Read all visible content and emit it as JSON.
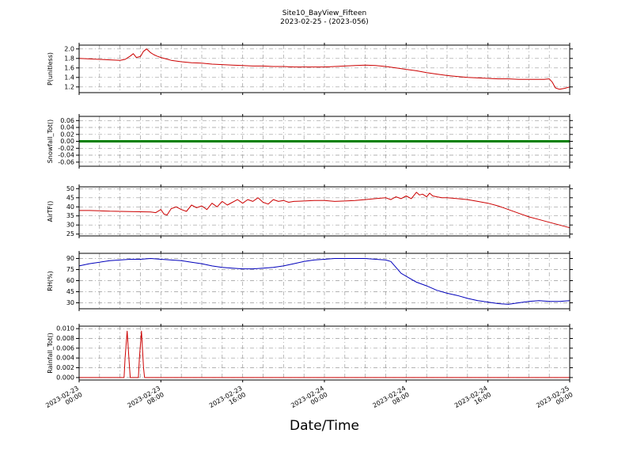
{
  "title": {
    "line1": "Site10_BayView_Fifteen",
    "line2": "2023-02-25 - (2023-056)"
  },
  "xlabel": "Date/Time",
  "x_axis": {
    "xlim": [
      0,
      48
    ],
    "xticks": [
      0,
      8,
      16,
      24,
      32,
      40,
      48
    ],
    "xtick_labels": [
      [
        "2023-02-23",
        "00:00"
      ],
      [
        "2023-02-23",
        "08:00"
      ],
      [
        "2023-02-23",
        "16:00"
      ],
      [
        "2023-02-24",
        "00:00"
      ],
      [
        "2023-02-24",
        "08:00"
      ],
      [
        "2023-02-24",
        "16:00"
      ],
      [
        "2023-02-25",
        "00:00"
      ]
    ],
    "minor_step": 2
  },
  "chart_data": [
    {
      "type": "line",
      "ylabel": "P(unitless)",
      "color": "#cc0000",
      "linewidth": 1,
      "ylim": [
        1.08,
        2.08
      ],
      "yticks": [
        1.2,
        1.4,
        1.6,
        1.8,
        2.0
      ],
      "ytick_labels": [
        "1.2",
        "1.4",
        "1.6",
        "1.8",
        "2.0"
      ],
      "x": [
        0,
        1,
        2,
        3,
        4,
        4.5,
        5,
        5.3,
        5.6,
        6,
        6.3,
        6.6,
        7,
        7.3,
        7.6,
        8,
        8.5,
        9,
        10,
        11,
        12,
        13,
        14,
        15,
        16,
        17,
        18,
        19,
        20,
        21,
        22,
        23,
        24,
        25,
        26,
        27,
        28,
        29,
        30,
        31,
        32,
        33,
        34,
        35,
        36,
        37,
        38,
        39,
        40,
        41,
        42,
        43,
        44,
        45,
        45.5,
        46,
        46.3,
        46.6,
        47,
        47.5,
        48
      ],
      "y": [
        1.8,
        1.79,
        1.78,
        1.77,
        1.76,
        1.78,
        1.85,
        1.9,
        1.82,
        1.84,
        1.95,
        2.0,
        1.92,
        1.88,
        1.85,
        1.82,
        1.79,
        1.76,
        1.73,
        1.71,
        1.7,
        1.68,
        1.67,
        1.66,
        1.65,
        1.64,
        1.64,
        1.63,
        1.63,
        1.62,
        1.62,
        1.62,
        1.62,
        1.63,
        1.64,
        1.65,
        1.66,
        1.65,
        1.63,
        1.6,
        1.57,
        1.54,
        1.5,
        1.47,
        1.44,
        1.42,
        1.4,
        1.39,
        1.38,
        1.37,
        1.37,
        1.36,
        1.36,
        1.36,
        1.36,
        1.37,
        1.3,
        1.18,
        1.15,
        1.17,
        1.2
      ]
    },
    {
      "type": "line",
      "ylabel": "Snowfall_Tot()",
      "color": "#008000",
      "linewidth": 3,
      "ylim": [
        -0.072,
        0.072
      ],
      "yticks": [
        -0.06,
        -0.04,
        -0.02,
        0,
        0.02,
        0.04,
        0.06
      ],
      "ytick_labels": [
        "-0.06",
        "-0.04",
        "-0.02",
        "0.00",
        "0.02",
        "0.04",
        "0.06"
      ],
      "x": [
        0,
        48
      ],
      "y": [
        0,
        0
      ]
    },
    {
      "type": "line",
      "ylabel": "AirTF()",
      "color": "#cc0000",
      "linewidth": 1,
      "ylim": [
        24,
        51
      ],
      "yticks": [
        25,
        30,
        35,
        40,
        45,
        50
      ],
      "ytick_labels": [
        "25",
        "30",
        "35",
        "40",
        "45",
        "50"
      ],
      "x": [
        0,
        1,
        2,
        3,
        4,
        5,
        6,
        7,
        7.5,
        8,
        8.3,
        8.6,
        9,
        9.5,
        10,
        10.5,
        11,
        11.5,
        12,
        12.5,
        13,
        13.5,
        14,
        14.5,
        15,
        15.5,
        16,
        16.5,
        17,
        17.5,
        18,
        18.5,
        19,
        19.5,
        20,
        20.5,
        21,
        22,
        23,
        24,
        25,
        26,
        27,
        28,
        29,
        30,
        30.5,
        31,
        31.5,
        32,
        32.5,
        33,
        33.3,
        33.6,
        34,
        34.3,
        34.6,
        35,
        35.5,
        36,
        37,
        38,
        39,
        40,
        41,
        42,
        43,
        44,
        45,
        46,
        47,
        48
      ],
      "y": [
        38,
        38,
        37.8,
        37.6,
        37.5,
        37.4,
        37.3,
        37.2,
        36.8,
        38.5,
        36,
        35.5,
        39,
        40,
        38.5,
        37.5,
        41,
        39.5,
        40.5,
        38.5,
        42,
        40,
        43,
        41,
        42.5,
        44,
        42,
        44,
        43,
        45,
        42.5,
        41.5,
        44,
        43,
        43.5,
        42.5,
        43,
        43.2,
        43.5,
        43.5,
        43,
        43.2,
        43.5,
        44,
        44.5,
        45,
        44,
        45.5,
        44.5,
        46,
        44.5,
        48,
        46.5,
        47,
        45.5,
        47.5,
        46,
        45.5,
        45,
        45,
        44.5,
        44,
        43,
        42,
        40.5,
        38.5,
        36.5,
        34.5,
        33,
        31.5,
        30,
        28.5
      ]
    },
    {
      "type": "line",
      "ylabel": "RH(%)",
      "color": "#0000bb",
      "linewidth": 1,
      "ylim": [
        22,
        97
      ],
      "yticks": [
        30,
        45,
        60,
        75,
        90
      ],
      "ytick_labels": [
        "30",
        "45",
        "60",
        "75",
        "90"
      ],
      "x": [
        0,
        1,
        2,
        3,
        4,
        5,
        6,
        7,
        8,
        9,
        10,
        11,
        12,
        13,
        14,
        15,
        16,
        17,
        18,
        19,
        20,
        21,
        22,
        23,
        24,
        25,
        26,
        27,
        28,
        29,
        30,
        30.5,
        31,
        31.5,
        32,
        32.5,
        33,
        34,
        35,
        36,
        37,
        38,
        39,
        40,
        41,
        42,
        43,
        44,
        45,
        46,
        47,
        48
      ],
      "y": [
        80,
        83,
        85,
        87,
        88,
        89,
        89,
        90,
        89,
        88,
        87,
        85,
        83,
        80,
        78,
        77,
        76,
        76,
        77,
        78,
        80,
        83,
        86,
        88,
        89,
        90,
        90,
        90,
        90,
        89,
        88,
        86,
        78,
        70,
        66,
        62,
        58,
        53,
        47,
        43,
        40,
        36,
        33,
        31,
        29,
        28,
        30,
        32,
        33,
        32,
        32,
        33
      ]
    },
    {
      "type": "line",
      "ylabel": "Rainfall_Tot()",
      "color": "#cc0000",
      "linewidth": 1,
      "ylim": [
        -0.0005,
        0.0105
      ],
      "yticks": [
        0,
        0.002,
        0.004,
        0.006,
        0.008,
        0.01
      ],
      "ytick_labels": [
        "0.000",
        "0.002",
        "0.004",
        "0.006",
        "0.008",
        "0.010"
      ],
      "x": [
        0,
        4.4,
        4.5,
        4.7,
        4.9,
        5.0,
        5.8,
        5.9,
        6.1,
        6.3,
        6.4,
        48
      ],
      "y": [
        0,
        0,
        0.004,
        0.0095,
        0.003,
        0,
        0,
        0.004,
        0.0095,
        0.002,
        0,
        0
      ]
    }
  ]
}
